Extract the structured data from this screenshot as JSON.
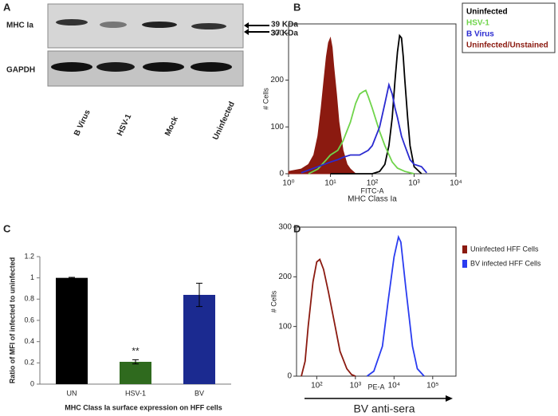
{
  "panels": [
    "A",
    "B",
    "C",
    "D"
  ],
  "blot": {
    "rows": [
      "MHC Ia",
      "GAPDH"
    ],
    "markers": [
      "39 KDa",
      "37 KDa"
    ],
    "lanes": [
      "B Virus",
      "HSV-1",
      "Mock",
      "Uninfected"
    ]
  },
  "chart_data": [
    {
      "type": "line",
      "xscale": "log",
      "xlim": [
        1,
        10000
      ],
      "xticks": [
        {
          "value": 1,
          "label": "10⁰"
        },
        {
          "value": 10,
          "label": "10¹"
        },
        {
          "value": 100,
          "label": "10²"
        },
        {
          "value": 1000,
          "label": "10³"
        },
        {
          "value": 10000,
          "label": "10⁴"
        }
      ],
      "ylim": [
        0,
        320
      ],
      "yticks": [
        0,
        100,
        200,
        300
      ],
      "xlabel": "FITC-A",
      "xlabel2": "MHC Class Ia",
      "ylabel": "# Cells",
      "series": [
        {
          "name": "Uninfected",
          "color": "#000000",
          "x": [
            10,
            100,
            150,
            200,
            250,
            300,
            350,
            400,
            450,
            500,
            550,
            600,
            700,
            800,
            1000,
            1500
          ],
          "values": [
            0,
            0,
            5,
            20,
            60,
            120,
            200,
            260,
            295,
            290,
            250,
            200,
            120,
            60,
            15,
            0
          ]
        },
        {
          "name": "HSV-1",
          "color": "#6fd44a",
          "x": [
            3,
            5,
            8,
            10,
            15,
            20,
            30,
            40,
            50,
            60,
            70,
            80,
            100,
            150,
            200,
            300,
            400,
            600,
            1000
          ],
          "values": [
            0,
            10,
            30,
            40,
            50,
            70,
            110,
            150,
            170,
            175,
            178,
            165,
            140,
            90,
            60,
            25,
            12,
            5,
            0
          ]
        },
        {
          "name": "B Virus",
          "color": "#2a2ad0",
          "x": [
            2,
            5,
            10,
            15,
            20,
            30,
            50,
            80,
            100,
            150,
            200,
            250,
            300,
            350,
            400,
            500,
            600,
            800,
            1000,
            1500,
            2000
          ],
          "values": [
            2,
            15,
            25,
            30,
            35,
            40,
            40,
            50,
            60,
            100,
            150,
            190,
            170,
            140,
            120,
            80,
            60,
            30,
            20,
            15,
            2
          ]
        },
        {
          "name": "Uninfected/Unstained",
          "color": "#8b1a10",
          "fill": true,
          "x": [
            1,
            2,
            3,
            4,
            5,
            6,
            7,
            8,
            9,
            10,
            11,
            12,
            14,
            16,
            20,
            25,
            30,
            40
          ],
          "values": [
            5,
            10,
            20,
            40,
            80,
            140,
            200,
            250,
            280,
            290,
            270,
            230,
            170,
            110,
            50,
            20,
            10,
            0
          ]
        }
      ]
    },
    {
      "type": "bar",
      "categories": [
        "UN",
        "HSV-1",
        "BV"
      ],
      "values": [
        1,
        0.21,
        0.84
      ],
      "errors": [
        0.005,
        0.02,
        0.11
      ],
      "colors": [
        "#000000",
        "#2f6a1e",
        "#1b2a90"
      ],
      "ylim": [
        0,
        1.2
      ],
      "yticks": [
        0,
        0.2,
        0.4,
        0.6,
        0.8,
        1,
        1.2
      ],
      "ylabel": "Ratio of MFI of infected to uninfected",
      "xlabel": "MHC Class Ia surface expression on HFF cells",
      "annotation": "**"
    },
    {
      "type": "line",
      "xscale": "log",
      "xlim": [
        30,
        400000
      ],
      "xticks": [
        {
          "value": 100,
          "label": "10²"
        },
        {
          "value": 1000,
          "label": "10³"
        },
        {
          "value": 10000,
          "label": "10⁴"
        },
        {
          "value": 100000,
          "label": "10⁵"
        }
      ],
      "ylim": [
        0,
        300
      ],
      "yticks": [
        0,
        100,
        200,
        300
      ],
      "xlabel": "PE-A",
      "ylabel": "# Cells",
      "annotation": "BV anti-sera",
      "series": [
        {
          "name": "Uninfected HFF Cells",
          "color": "#8b1a10",
          "x": [
            40,
            50,
            60,
            80,
            100,
            120,
            150,
            200,
            300,
            400,
            600,
            800,
            1000
          ],
          "values": [
            0,
            30,
            100,
            190,
            230,
            235,
            215,
            170,
            100,
            50,
            15,
            3,
            0
          ]
        },
        {
          "name": "BV infected HFF Cells",
          "color": "#2a3cf0",
          "x": [
            2000,
            3000,
            5000,
            7000,
            10000,
            13000,
            15000,
            20000,
            30000,
            40000,
            60000
          ],
          "values": [
            0,
            10,
            60,
            150,
            240,
            280,
            270,
            180,
            60,
            15,
            0
          ]
        }
      ]
    }
  ]
}
